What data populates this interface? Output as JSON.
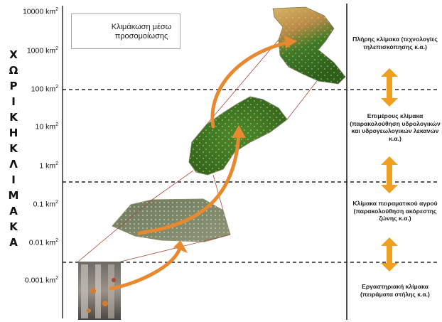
{
  "legend": {
    "text": "Κλιμάκωση μέσω προσομοίωσης"
  },
  "axis": {
    "title_letters": [
      "Χ",
      "Ω",
      "Ρ",
      "Ι",
      "Κ",
      "Η",
      "Κ",
      "Λ",
      "Ι",
      "Μ",
      "Α",
      "Κ",
      "Α"
    ],
    "ticks": [
      {
        "value": "10000",
        "unit": "km",
        "exp": "2"
      },
      {
        "value": "1000",
        "unit": "km",
        "exp": "2"
      },
      {
        "value": "100",
        "unit": "km",
        "exp": "2"
      },
      {
        "value": "10",
        "unit": "km",
        "exp": "2"
      },
      {
        "value": "1",
        "unit": "km",
        "exp": "2"
      },
      {
        "value": "0.1",
        "unit": "km",
        "exp": "2"
      },
      {
        "value": "0.01",
        "unit": "km",
        "exp": "2"
      },
      {
        "value": "0.001",
        "unit": "km",
        "exp": "2"
      }
    ]
  },
  "scales": [
    {
      "label": "Πλήρης κλίμακα (τεχνολογίες τηλεπισκόπησης κ.α.)"
    },
    {
      "label": "Επιμέρους κλίμακα (παρακολούθηση υδρολογικών και υδρογεωλογικών λεκανών κ.α.)"
    },
    {
      "label": "Κλίμακα πειραματικού αγρού (παρακολούθηση ακόρεστης ζώνης κ.α.)"
    },
    {
      "label": "Εργαστηριακή κλίμακα (πειράματα στήλης κ.α.)"
    }
  ],
  "colors": {
    "arrow": "#e8892f",
    "link_lines": "#a64a3a",
    "divider": "#222222"
  }
}
